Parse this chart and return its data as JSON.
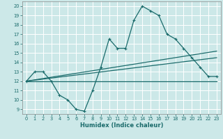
{
  "xlabel": "Humidex (Indice chaleur)",
  "xlim": [
    -0.5,
    23.5
  ],
  "ylim": [
    8.5,
    20.5
  ],
  "xticks": [
    0,
    1,
    2,
    3,
    4,
    5,
    6,
    7,
    8,
    9,
    10,
    11,
    12,
    13,
    14,
    15,
    16,
    17,
    18,
    19,
    20,
    21,
    22,
    23
  ],
  "yticks": [
    9,
    10,
    11,
    12,
    13,
    14,
    15,
    16,
    17,
    18,
    19,
    20
  ],
  "bg_color": "#cce8e8",
  "grid_color": "#b0d4d4",
  "line_color": "#1a6b6b",
  "line1_x": [
    0,
    1,
    2,
    3,
    4,
    5,
    6,
    7,
    8,
    9,
    10,
    11,
    12,
    13,
    14,
    15,
    16,
    17,
    18,
    19,
    20,
    21,
    22,
    23
  ],
  "line1_y": [
    12,
    13,
    13,
    12,
    10.5,
    10,
    9,
    8.8,
    11,
    13.5,
    16.5,
    15.5,
    15.5,
    18.5,
    20,
    19.5,
    19,
    17,
    16.5,
    15.5,
    14.5,
    13.5,
    12.5,
    12.5
  ],
  "line2_x": [
    0,
    7,
    19,
    23
  ],
  "line2_y": [
    12,
    12,
    12,
    12
  ],
  "line3_x": [
    0,
    23
  ],
  "line3_y": [
    12.0,
    15.2
  ],
  "line4_x": [
    0,
    23
  ],
  "line4_y": [
    12.0,
    14.5
  ]
}
